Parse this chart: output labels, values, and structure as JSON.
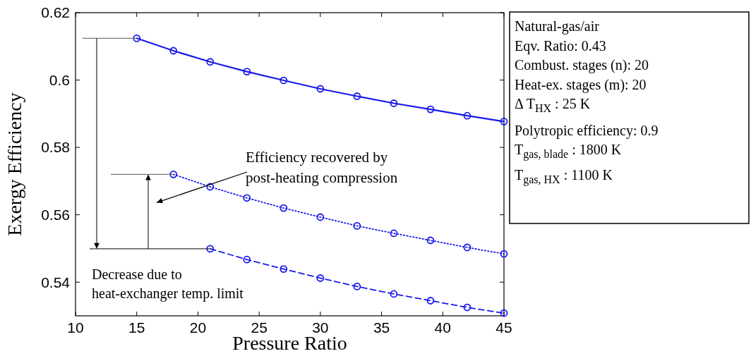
{
  "chart_data": {
    "type": "line",
    "xlabel": "Pressure Ratio",
    "ylabel": "Exergy Efficiency",
    "xlim": [
      10,
      45
    ],
    "xticks": [
      10,
      15,
      20,
      25,
      30,
      35,
      40,
      45
    ],
    "ylim": [
      0.53,
      0.62
    ],
    "yticks": [
      0.54,
      0.56,
      0.58,
      {
        "value": 0.6,
        "label": "0.6"
      },
      0.62
    ],
    "marker": "circle",
    "series": [
      {
        "color": "#1a1aeb",
        "line_style": "solid",
        "x": [
          15,
          18,
          21,
          24,
          27,
          30,
          33,
          36,
          39,
          42,
          45
        ],
        "values": [
          0.6124,
          0.6087,
          0.6054,
          0.6025,
          0.5999,
          0.5974,
          0.5952,
          0.5931,
          0.5913,
          0.5894,
          0.5877
        ]
      },
      {
        "color": "#1a1aeb",
        "line_style": "dotted",
        "x": [
          18,
          21,
          24,
          27,
          30,
          33,
          36,
          39,
          42,
          45
        ],
        "values": [
          0.572,
          0.5683,
          0.565,
          0.562,
          0.5593,
          0.5567,
          0.5545,
          0.5524,
          0.5503,
          0.5484
        ]
      },
      {
        "color": "#1a1aeb",
        "line_style": "dashed",
        "x": [
          21,
          24,
          27,
          30,
          33,
          36,
          39,
          42,
          45
        ],
        "values": [
          0.5499,
          0.5467,
          0.5439,
          0.5412,
          0.5387,
          0.5365,
          0.5345,
          0.5325,
          0.5308
        ]
      }
    ],
    "annotations": [
      "Efficiency recovered by post-heating compression",
      {
        "text": "Decrease due to heat-exchanger temp. limit",
        "x": 21,
        "y": 0.5499
      },
      "Natural-gas/air",
      "Eqv. Ratio: 0.43",
      "Combust. stages (n): 20",
      "Heat-ex. stages (m): 20",
      "Δ T$_{HX}$: 25 K",
      "Polytropic efficiency: 0.9",
      "T$_{gas, blade}$: 1800 K",
      "T$_{gas, HX}$: 1100 K"
    ]
  }
}
